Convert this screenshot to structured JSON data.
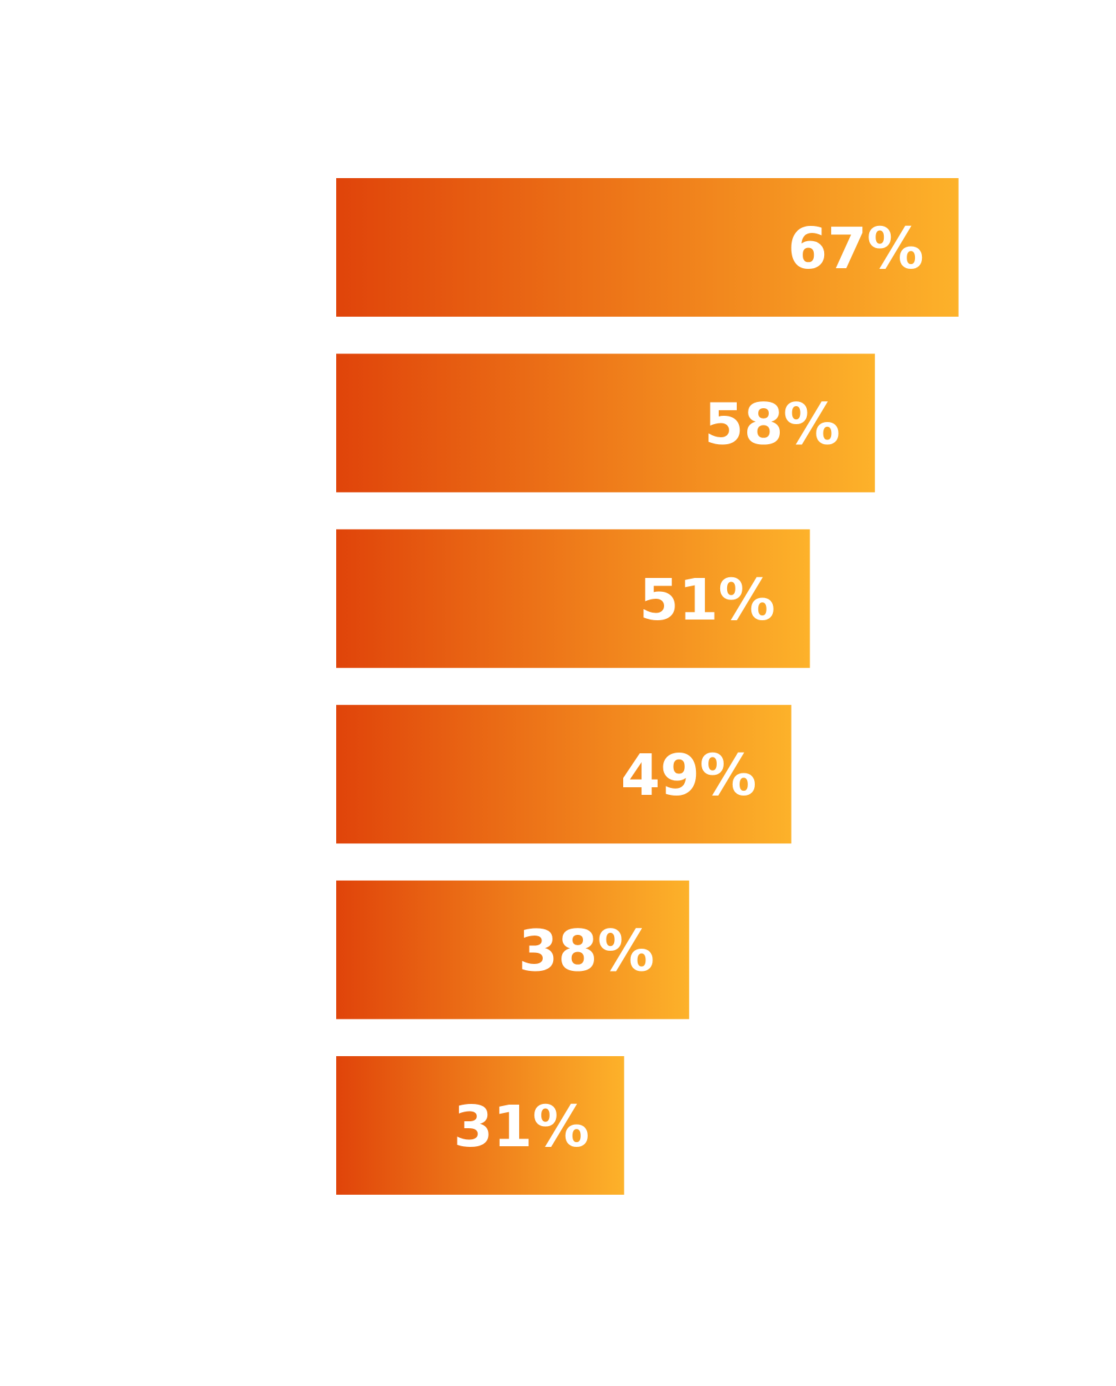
{
  "chart_data": {
    "type": "bar",
    "orientation": "horizontal",
    "categories": [
      "",
      "",
      "",
      "",
      "",
      ""
    ],
    "values": [
      67,
      58,
      51,
      49,
      38,
      31
    ],
    "value_labels": [
      "67%",
      "58%",
      "51%",
      "49%",
      "38%",
      "31%"
    ],
    "xlim": [
      0,
      100
    ],
    "grid": false,
    "legend": "none"
  },
  "colors": {
    "bar_gradient_start": "#e0440a",
    "bar_gradient_end": "#fdb22a",
    "value_label": "#ffffff",
    "category_label": "#fafafa",
    "background": "#ffffff"
  }
}
